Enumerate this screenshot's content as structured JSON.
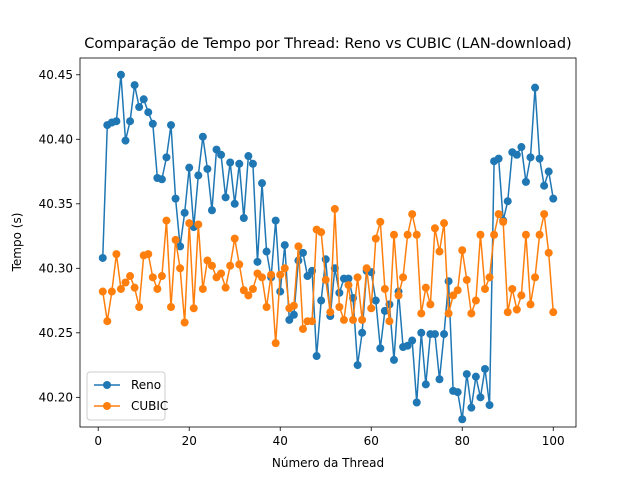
{
  "chart_data": {
    "type": "line",
    "title": "Comparação de Tempo por Thread: Reno vs CUBIC (LAN-download)",
    "xlabel": "Número da Thread",
    "ylabel": "Tempo (s)",
    "xlim": [
      -4,
      105
    ],
    "ylim": [
      40.177,
      40.463
    ],
    "xticks": [
      0,
      20,
      40,
      60,
      80,
      100
    ],
    "yticks": [
      40.2,
      40.25,
      40.3,
      40.35,
      40.4,
      40.45
    ],
    "ytick_labels": [
      "40.20",
      "40.25",
      "40.30",
      "40.35",
      "40.40",
      "40.45"
    ],
    "grid": false,
    "legend_position": "lower-left",
    "x": [
      1,
      2,
      3,
      4,
      5,
      6,
      7,
      8,
      9,
      10,
      11,
      12,
      13,
      14,
      15,
      16,
      17,
      18,
      19,
      20,
      21,
      22,
      23,
      24,
      25,
      26,
      27,
      28,
      29,
      30,
      31,
      32,
      33,
      34,
      35,
      36,
      37,
      38,
      39,
      40,
      41,
      42,
      43,
      44,
      45,
      46,
      47,
      48,
      49,
      50,
      51,
      52,
      53,
      54,
      55,
      56,
      57,
      58,
      59,
      60,
      61,
      62,
      63,
      64,
      65,
      66,
      67,
      68,
      69,
      70,
      71,
      72,
      73,
      74,
      75,
      76,
      77,
      78,
      79,
      80,
      81,
      82,
      83,
      84,
      85,
      86,
      87,
      88,
      89,
      90,
      91,
      92,
      93,
      94,
      95,
      96,
      97,
      98,
      99,
      100
    ],
    "series": [
      {
        "name": "Reno",
        "color": "#1f77b4",
        "values": [
          40.308,
          40.411,
          40.413,
          40.414,
          40.45,
          40.399,
          40.414,
          40.442,
          40.425,
          40.431,
          40.421,
          40.412,
          40.37,
          40.369,
          40.386,
          40.411,
          40.354,
          40.317,
          40.343,
          40.378,
          40.332,
          40.372,
          40.402,
          40.377,
          40.345,
          40.392,
          40.388,
          40.355,
          40.382,
          40.35,
          40.381,
          40.339,
          40.387,
          40.381,
          40.305,
          40.366,
          40.313,
          40.293,
          40.337,
          40.282,
          40.318,
          40.26,
          40.264,
          40.306,
          40.312,
          40.294,
          40.298,
          40.232,
          40.275,
          40.307,
          40.263,
          40.3,
          40.281,
          40.292,
          40.292,
          40.277,
          40.225,
          40.25,
          40.298,
          40.297,
          40.275,
          40.238,
          40.267,
          40.272,
          40.229,
          40.282,
          40.239,
          40.24,
          40.244,
          40.196,
          40.25,
          40.21,
          40.249,
          40.249,
          40.214,
          40.249,
          40.29,
          40.205,
          40.204,
          40.183,
          40.218,
          40.192,
          40.216,
          40.2,
          40.222,
          40.194,
          40.383,
          40.385,
          40.337,
          40.352,
          40.39,
          40.388,
          40.394,
          40.367,
          40.386,
          40.44,
          40.385,
          40.364,
          40.375,
          40.354
        ]
      },
      {
        "name": "CUBIC",
        "color": "#ff7f0e",
        "values": [
          40.282,
          40.259,
          40.282,
          40.311,
          40.284,
          40.289,
          40.294,
          40.285,
          40.27,
          40.31,
          40.311,
          40.293,
          40.284,
          40.294,
          40.337,
          40.27,
          40.322,
          40.3,
          40.258,
          40.335,
          40.269,
          40.334,
          40.284,
          40.306,
          40.302,
          40.293,
          40.296,
          40.285,
          40.302,
          40.323,
          40.303,
          40.283,
          40.279,
          40.284,
          40.296,
          40.293,
          40.27,
          40.295,
          40.242,
          40.295,
          40.3,
          40.269,
          40.271,
          40.317,
          40.253,
          40.259,
          40.259,
          40.33,
          40.328,
          40.291,
          40.266,
          40.346,
          40.27,
          40.26,
          40.287,
          40.26,
          40.293,
          40.26,
          40.3,
          40.269,
          40.323,
          40.336,
          40.284,
          40.259,
          40.326,
          40.279,
          40.293,
          40.326,
          40.342,
          40.326,
          40.265,
          40.285,
          40.272,
          40.331,
          40.313,
          40.335,
          40.265,
          40.279,
          40.283,
          40.314,
          40.291,
          40.265,
          40.275,
          40.326,
          40.284,
          40.293,
          40.326,
          40.342,
          40.336,
          40.266,
          40.284,
          40.268,
          40.279,
          40.326,
          40.272,
          40.293,
          40.326,
          40.342,
          40.312,
          40.266
        ]
      }
    ]
  }
}
